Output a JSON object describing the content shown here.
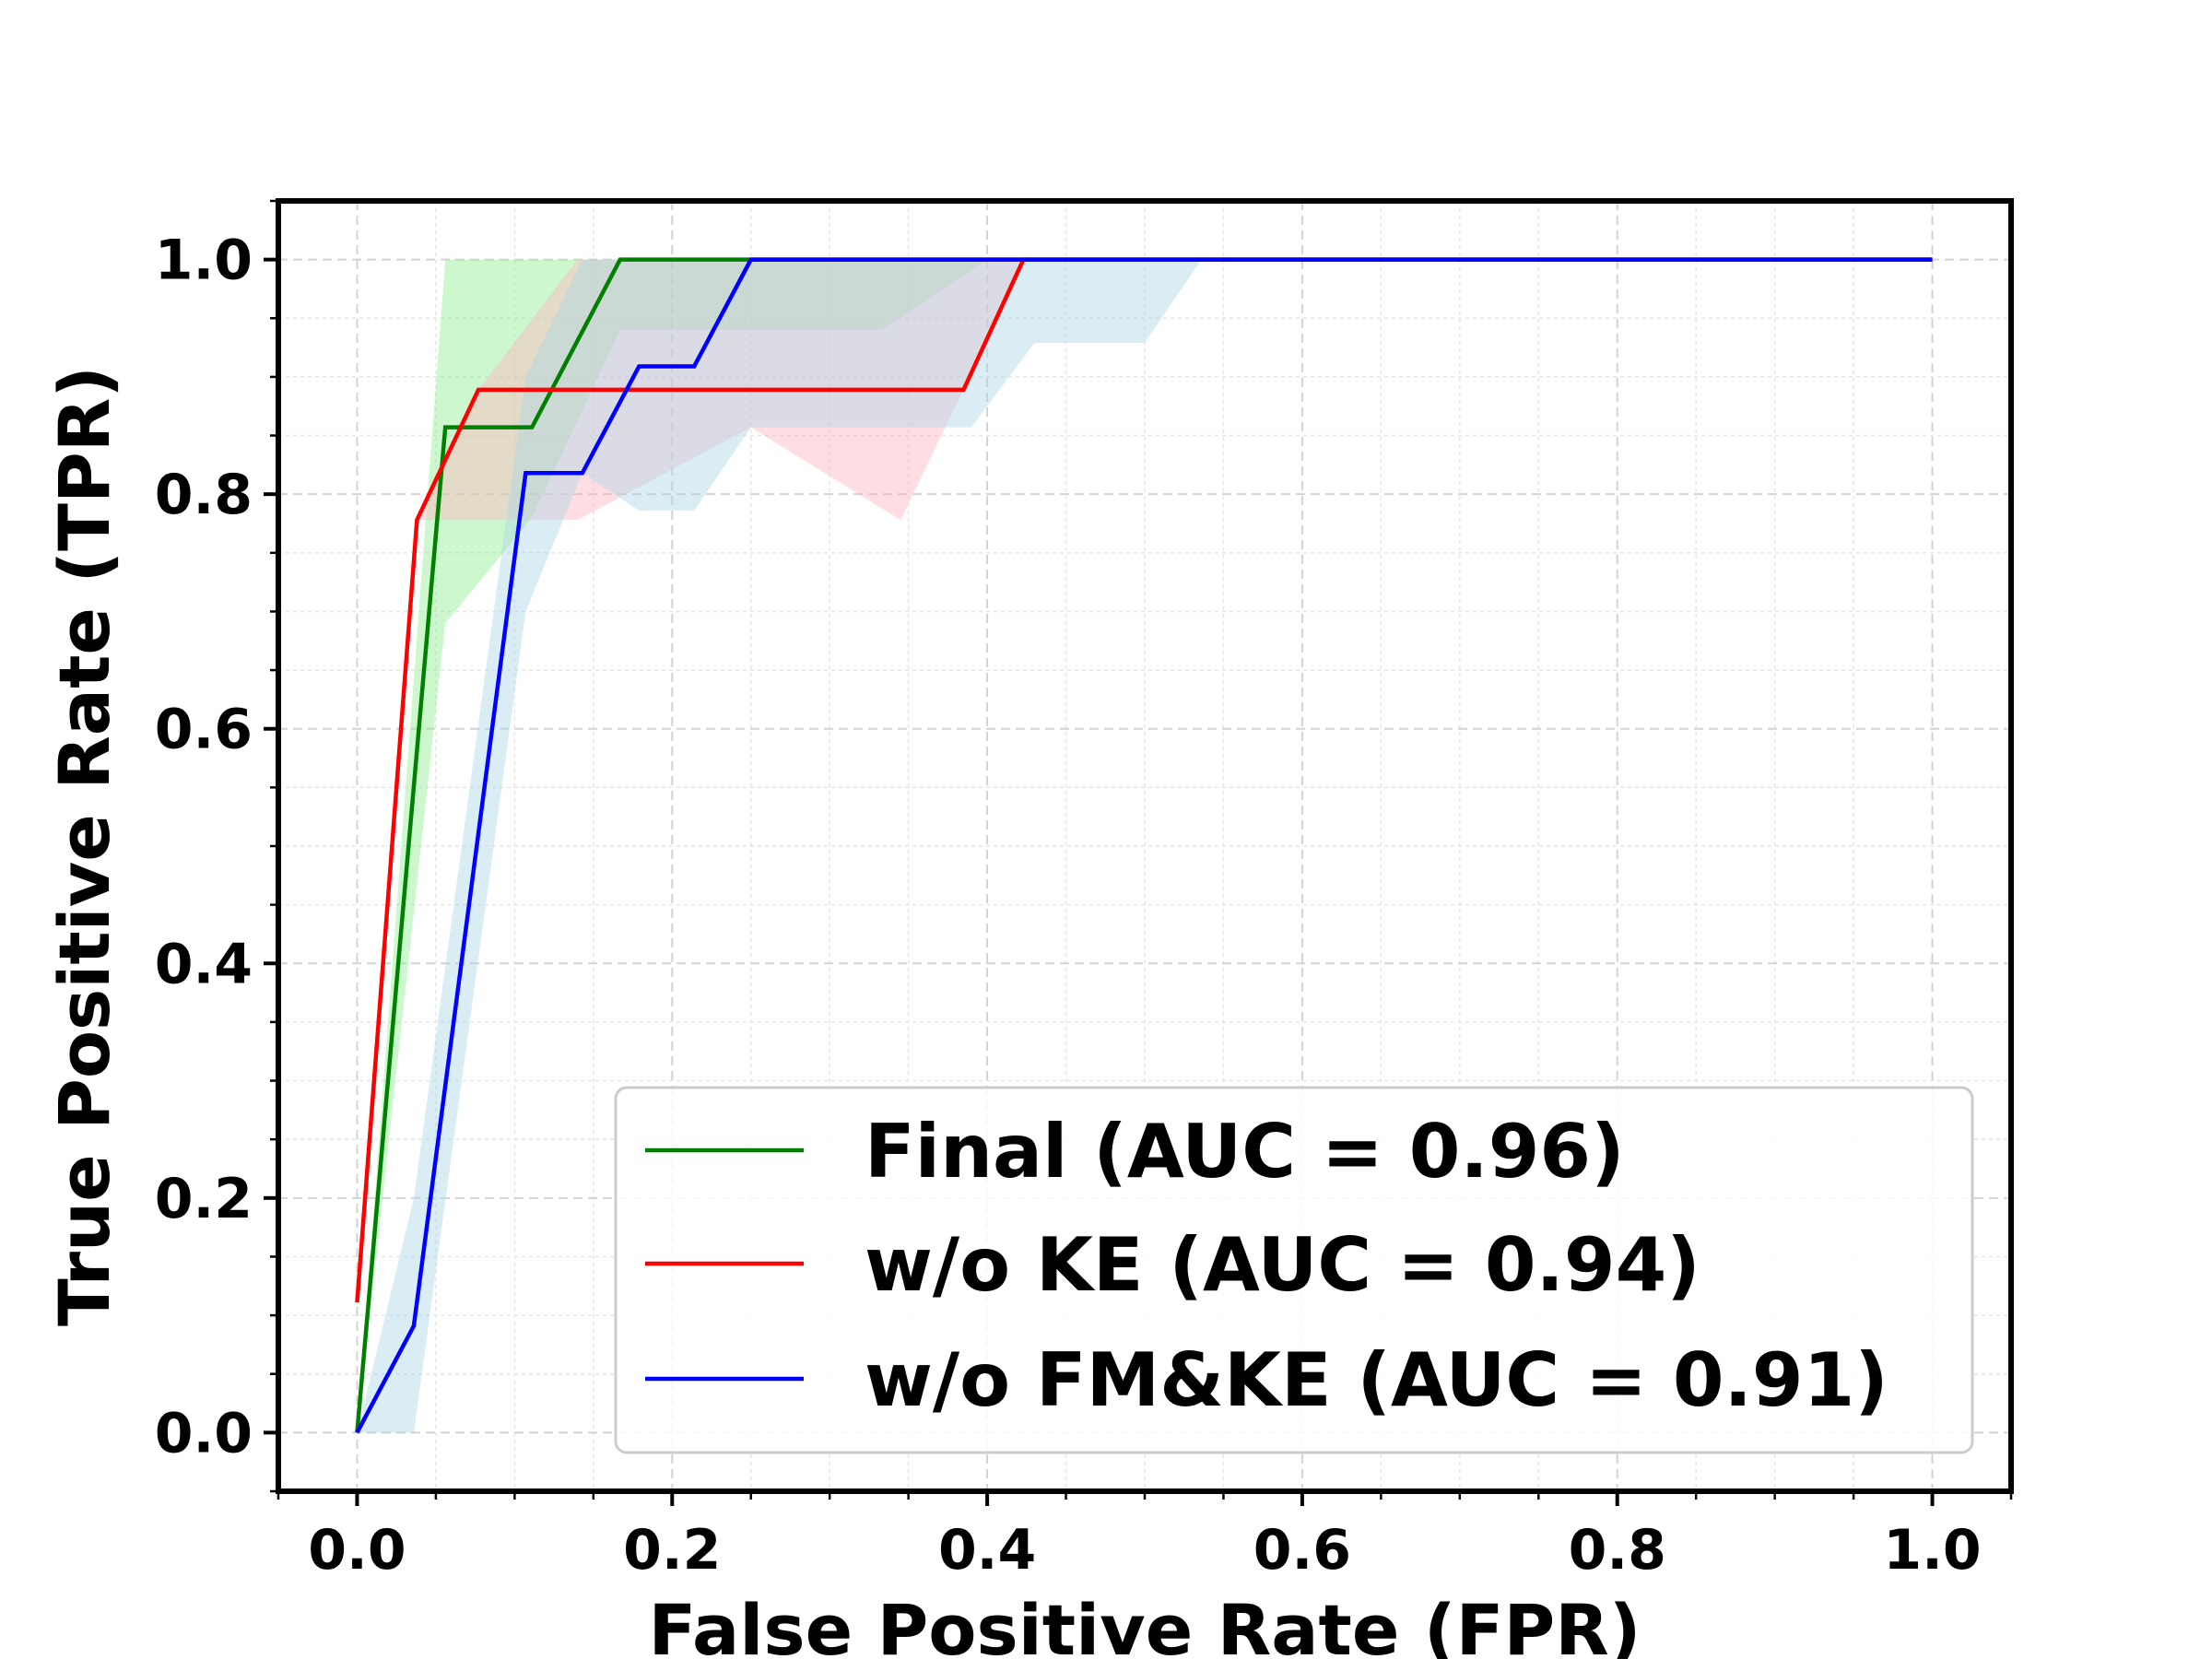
{
  "chart_data": {
    "type": "line",
    "title": "",
    "xlabel": "False Positive Rate (FPR)",
    "ylabel": "True Positive Rate (TPR)",
    "xlim": [
      -0.05,
      1.05
    ],
    "ylim": [
      -0.05,
      1.05
    ],
    "xticks": [
      0.0,
      0.2,
      0.4,
      0.6,
      0.8,
      1.0
    ],
    "yticks": [
      0.0,
      0.2,
      0.4,
      0.6,
      0.8,
      1.0
    ],
    "xtick_labels": [
      "0.0",
      "0.2",
      "0.4",
      "0.6",
      "0.8",
      "1.0"
    ],
    "ytick_labels": [
      "0.0",
      "0.2",
      "0.4",
      "0.6",
      "0.8",
      "1.0"
    ],
    "grid": true,
    "legend_position": "lower-right",
    "series": [
      {
        "name": "Final (AUC = 0.96)",
        "color": "#008000",
        "band_color": "#90ee90",
        "x": [
          0.0,
          0.056,
          0.111,
          0.167,
          1.0
        ],
        "y": [
          0.0,
          0.857,
          0.857,
          1.0,
          1.0
        ],
        "band_x": [
          0.0,
          0.056,
          0.111,
          0.167,
          0.25,
          0.333,
          0.4,
          1.0
        ],
        "band_upper": [
          0.0,
          1.0,
          1.0,
          1.0,
          1.0,
          1.0,
          1.0,
          1.0
        ],
        "band_lower": [
          0.0,
          0.69,
          0.78,
          0.94,
          0.94,
          0.94,
          1.0,
          1.0
        ]
      },
      {
        "name": "w/o KE (AUC = 0.94)",
        "color": "#ff0000",
        "band_color": "#ffb6c1",
        "x": [
          0.0,
          0.038,
          0.077,
          0.385,
          0.423,
          1.0
        ],
        "y": [
          0.111,
          0.778,
          0.889,
          0.889,
          1.0,
          1.0
        ],
        "band_x": [
          0.0,
          0.038,
          0.077,
          0.14,
          0.25,
          0.345,
          0.385,
          0.423,
          1.0
        ],
        "band_upper": [
          0.111,
          0.778,
          0.889,
          1.0,
          1.0,
          1.0,
          1.0,
          1.0,
          1.0
        ],
        "band_lower": [
          0.111,
          0.778,
          0.778,
          0.778,
          0.857,
          0.778,
          0.889,
          1.0,
          1.0
        ]
      },
      {
        "name": "w/o FM&KE (AUC = 0.91)",
        "color": "#0000ff",
        "band_color": "#add8e6",
        "x": [
          0.0,
          0.036,
          0.107,
          0.143,
          0.179,
          0.214,
          0.25,
          1.0
        ],
        "y": [
          0.0,
          0.091,
          0.818,
          0.818,
          0.909,
          0.909,
          1.0,
          1.0
        ],
        "band_x": [
          0.0,
          0.036,
          0.107,
          0.143,
          0.179,
          0.214,
          0.25,
          0.39,
          0.43,
          0.5,
          0.536,
          1.0
        ],
        "band_upper": [
          0.0,
          0.2,
          0.9,
          1.0,
          1.0,
          1.0,
          1.0,
          1.0,
          1.0,
          1.0,
          1.0,
          1.0
        ],
        "band_lower": [
          0.0,
          0.0,
          0.7,
          0.818,
          0.786,
          0.786,
          0.857,
          0.857,
          0.929,
          0.929,
          1.0,
          1.0
        ]
      }
    ]
  }
}
